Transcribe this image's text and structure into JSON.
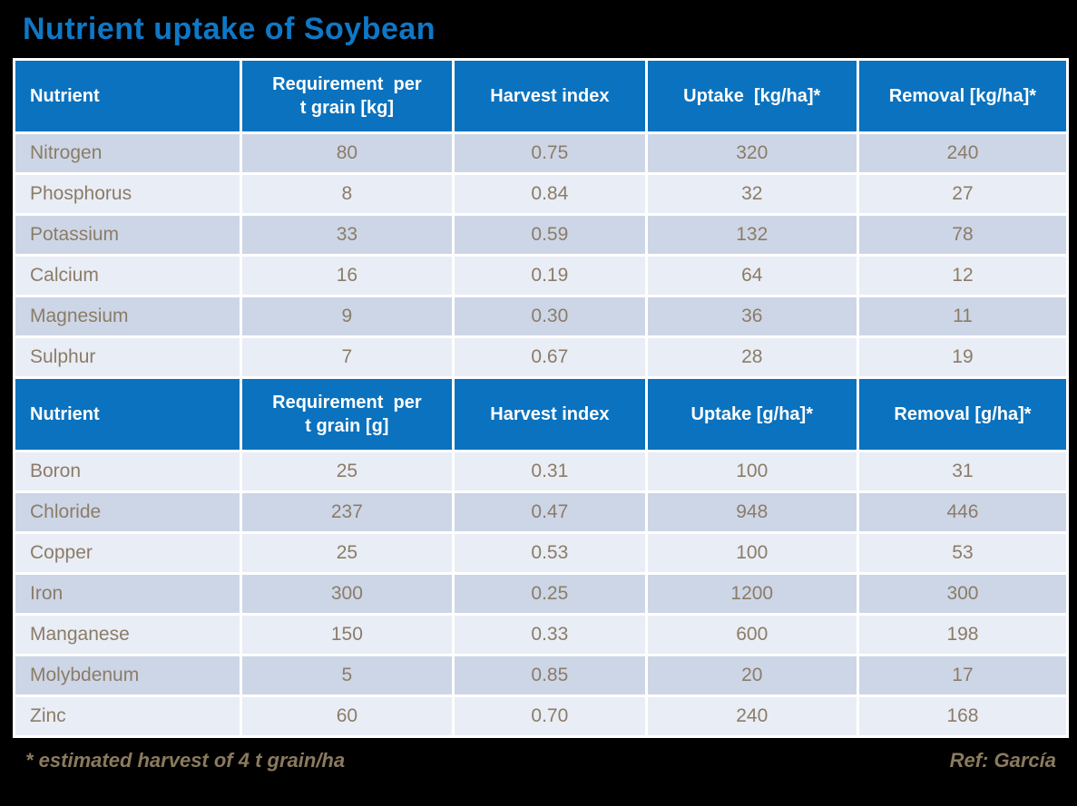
{
  "title": {
    "text": "Nutrient uptake of Soybean"
  },
  "colors": {
    "background": "#000000",
    "title_color": "#0e78c6",
    "header_bg": "#0a72be",
    "header_text": "#ffffff",
    "row_dark": "#cdd6e6",
    "row_light": "#e9edf5",
    "cell_text": "#8b7c68",
    "footer_color": "#8a7a5e",
    "grid_border": "#ffffff"
  },
  "table": {
    "sections": [
      {
        "columns": [
          "Nutrient",
          "Requirement  per\nt grain [kg]",
          "Harvest index",
          "Uptake  [kg/ha]*",
          "Removal [kg/ha]*"
        ],
        "rows": [
          {
            "shade": "dark",
            "cells": [
              "Nitrogen",
              "80",
              "0.75",
              "320",
              "240"
            ]
          },
          {
            "shade": "light",
            "cells": [
              "Phosphorus",
              "8",
              "0.84",
              "32",
              "27"
            ]
          },
          {
            "shade": "dark",
            "cells": [
              "Potassium",
              "33",
              "0.59",
              "132",
              "78"
            ]
          },
          {
            "shade": "light",
            "cells": [
              "Calcium",
              "16",
              "0.19",
              "64",
              "12"
            ]
          },
          {
            "shade": "dark",
            "cells": [
              "Magnesium",
              "9",
              "0.30",
              "36",
              "11"
            ]
          },
          {
            "shade": "light",
            "cells": [
              "Sulphur",
              "7",
              "0.67",
              "28",
              "19"
            ]
          }
        ]
      },
      {
        "columns": [
          "Nutrient",
          "Requirement  per\nt grain [g]",
          "Harvest index",
          "Uptake [g/ha]*",
          "Removal [g/ha]*"
        ],
        "rows": [
          {
            "shade": "light",
            "cells": [
              "Boron",
              "25",
              "0.31",
              "100",
              "31"
            ]
          },
          {
            "shade": "dark",
            "cells": [
              "Chloride",
              "237",
              "0.47",
              "948",
              "446"
            ]
          },
          {
            "shade": "light",
            "cells": [
              "Copper",
              "25",
              "0.53",
              "100",
              "53"
            ]
          },
          {
            "shade": "dark",
            "cells": [
              "Iron",
              "300",
              "0.25",
              "1200",
              "300"
            ]
          },
          {
            "shade": "light",
            "cells": [
              "Manganese",
              "150",
              "0.33",
              "600",
              "198"
            ]
          },
          {
            "shade": "dark",
            "cells": [
              "Molybdenum",
              "5",
              "0.85",
              "20",
              "17"
            ]
          },
          {
            "shade": "light",
            "cells": [
              "Zinc",
              "60",
              "0.70",
              "240",
              "168"
            ]
          }
        ]
      }
    ],
    "column_widths_pct": [
      21.5,
      20.2,
      18.3,
      20.1,
      19.9
    ]
  },
  "footer": {
    "note": "* estimated harvest of 4 t grain/ha",
    "ref": "Ref: García"
  }
}
